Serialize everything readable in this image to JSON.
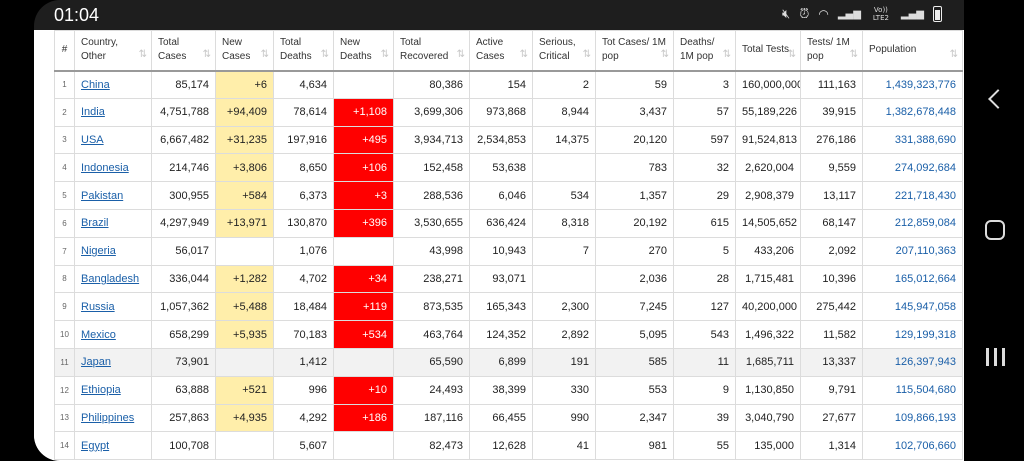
{
  "status_bar": {
    "time": "01:04",
    "network_label": "Vo)) LTE2",
    "icons": [
      "mute-icon",
      "alarm-icon",
      "wifi-icon",
      "signal-icon",
      "lte-icon",
      "signal-icon",
      "battery-icon"
    ]
  },
  "table": {
    "columns": [
      "#",
      "Country, Other",
      "Total Cases",
      "New Cases",
      "Total Deaths",
      "New Deaths",
      "Total Recovered",
      "Active Cases",
      "Serious, Critical",
      "Tot Cases/ 1M pop",
      "Deaths/ 1M pop",
      "Total Tests",
      "Tests/ 1M pop",
      "Population"
    ],
    "rows": [
      {
        "rank": "1",
        "country": "China",
        "total_cases": "85,174",
        "new_cases": "+6",
        "total_deaths": "4,634",
        "new_deaths": "",
        "total_recovered": "80,386",
        "active_cases": "154",
        "serious_critical": "2",
        "tot_cases_1m": "59",
        "deaths_1m": "3",
        "total_tests": "160,000,000",
        "tests_1m": "111,163",
        "population": "1,439,323,776"
      },
      {
        "rank": "2",
        "country": "India",
        "total_cases": "4,751,788",
        "new_cases": "+94,409",
        "total_deaths": "78,614",
        "new_deaths": "+1,108",
        "total_recovered": "3,699,306",
        "active_cases": "973,868",
        "serious_critical": "8,944",
        "tot_cases_1m": "3,437",
        "deaths_1m": "57",
        "total_tests": "55,189,226",
        "tests_1m": "39,915",
        "population": "1,382,678,448"
      },
      {
        "rank": "3",
        "country": "USA",
        "total_cases": "6,667,482",
        "new_cases": "+31,235",
        "total_deaths": "197,916",
        "new_deaths": "+495",
        "total_recovered": "3,934,713",
        "active_cases": "2,534,853",
        "serious_critical": "14,375",
        "tot_cases_1m": "20,120",
        "deaths_1m": "597",
        "total_tests": "91,524,813",
        "tests_1m": "276,186",
        "population": "331,388,690"
      },
      {
        "rank": "4",
        "country": "Indonesia",
        "total_cases": "214,746",
        "new_cases": "+3,806",
        "total_deaths": "8,650",
        "new_deaths": "+106",
        "total_recovered": "152,458",
        "active_cases": "53,638",
        "serious_critical": "",
        "tot_cases_1m": "783",
        "deaths_1m": "32",
        "total_tests": "2,620,004",
        "tests_1m": "9,559",
        "population": "274,092,684"
      },
      {
        "rank": "5",
        "country": "Pakistan",
        "total_cases": "300,955",
        "new_cases": "+584",
        "total_deaths": "6,373",
        "new_deaths": "+3",
        "total_recovered": "288,536",
        "active_cases": "6,046",
        "serious_critical": "534",
        "tot_cases_1m": "1,357",
        "deaths_1m": "29",
        "total_tests": "2,908,379",
        "tests_1m": "13,117",
        "population": "221,718,430"
      },
      {
        "rank": "6",
        "country": "Brazil",
        "total_cases": "4,297,949",
        "new_cases": "+13,971",
        "total_deaths": "130,870",
        "new_deaths": "+396",
        "total_recovered": "3,530,655",
        "active_cases": "636,424",
        "serious_critical": "8,318",
        "tot_cases_1m": "20,192",
        "deaths_1m": "615",
        "total_tests": "14,505,652",
        "tests_1m": "68,147",
        "population": "212,859,084"
      },
      {
        "rank": "7",
        "country": "Nigeria",
        "total_cases": "56,017",
        "new_cases": "",
        "total_deaths": "1,076",
        "new_deaths": "",
        "total_recovered": "43,998",
        "active_cases": "10,943",
        "serious_critical": "7",
        "tot_cases_1m": "270",
        "deaths_1m": "5",
        "total_tests": "433,206",
        "tests_1m": "2,092",
        "population": "207,110,363"
      },
      {
        "rank": "8",
        "country": "Bangladesh",
        "total_cases": "336,044",
        "new_cases": "+1,282",
        "total_deaths": "4,702",
        "new_deaths": "+34",
        "total_recovered": "238,271",
        "active_cases": "93,071",
        "serious_critical": "",
        "tot_cases_1m": "2,036",
        "deaths_1m": "28",
        "total_tests": "1,715,481",
        "tests_1m": "10,396",
        "population": "165,012,664"
      },
      {
        "rank": "9",
        "country": "Russia",
        "total_cases": "1,057,362",
        "new_cases": "+5,488",
        "total_deaths": "18,484",
        "new_deaths": "+119",
        "total_recovered": "873,535",
        "active_cases": "165,343",
        "serious_critical": "2,300",
        "tot_cases_1m": "7,245",
        "deaths_1m": "127",
        "total_tests": "40,200,000",
        "tests_1m": "275,442",
        "population": "145,947,058"
      },
      {
        "rank": "10",
        "country": "Mexico",
        "total_cases": "658,299",
        "new_cases": "+5,935",
        "total_deaths": "70,183",
        "new_deaths": "+534",
        "total_recovered": "463,764",
        "active_cases": "124,352",
        "serious_critical": "2,892",
        "tot_cases_1m": "5,095",
        "deaths_1m": "543",
        "total_tests": "1,496,322",
        "tests_1m": "11,582",
        "population": "129,199,318"
      },
      {
        "rank": "11",
        "country": "Japan",
        "total_cases": "73,901",
        "new_cases": "",
        "total_deaths": "1,412",
        "new_deaths": "",
        "total_recovered": "65,590",
        "active_cases": "6,899",
        "serious_critical": "191",
        "tot_cases_1m": "585",
        "deaths_1m": "11",
        "total_tests": "1,685,711",
        "tests_1m": "13,337",
        "population": "126,397,943"
      },
      {
        "rank": "12",
        "country": "Ethiopia",
        "total_cases": "63,888",
        "new_cases": "+521",
        "total_deaths": "996",
        "new_deaths": "+10",
        "total_recovered": "24,493",
        "active_cases": "38,399",
        "serious_critical": "330",
        "tot_cases_1m": "553",
        "deaths_1m": "9",
        "total_tests": "1,130,850",
        "tests_1m": "9,791",
        "population": "115,504,680"
      },
      {
        "rank": "13",
        "country": "Philippines",
        "total_cases": "257,863",
        "new_cases": "+4,935",
        "total_deaths": "4,292",
        "new_deaths": "+186",
        "total_recovered": "187,116",
        "active_cases": "66,455",
        "serious_critical": "990",
        "tot_cases_1m": "2,347",
        "deaths_1m": "39",
        "total_tests": "3,040,790",
        "tests_1m": "27,677",
        "population": "109,866,193"
      },
      {
        "rank": "14",
        "country": "Egypt",
        "total_cases": "100,708",
        "new_cases": "",
        "total_deaths": "5,607",
        "new_deaths": "",
        "total_recovered": "82,473",
        "active_cases": "12,628",
        "serious_critical": "41",
        "tot_cases_1m": "981",
        "deaths_1m": "55",
        "total_tests": "135,000",
        "tests_1m": "1,314",
        "population": "102,706,660"
      }
    ]
  },
  "colors": {
    "new_cases_highlight": "#ffeeaa",
    "new_deaths_highlight": "#ff0000",
    "link": "#1a5fa8"
  },
  "nav_bar": {
    "icons": [
      "back-icon",
      "home-icon",
      "recent-apps-icon"
    ]
  }
}
